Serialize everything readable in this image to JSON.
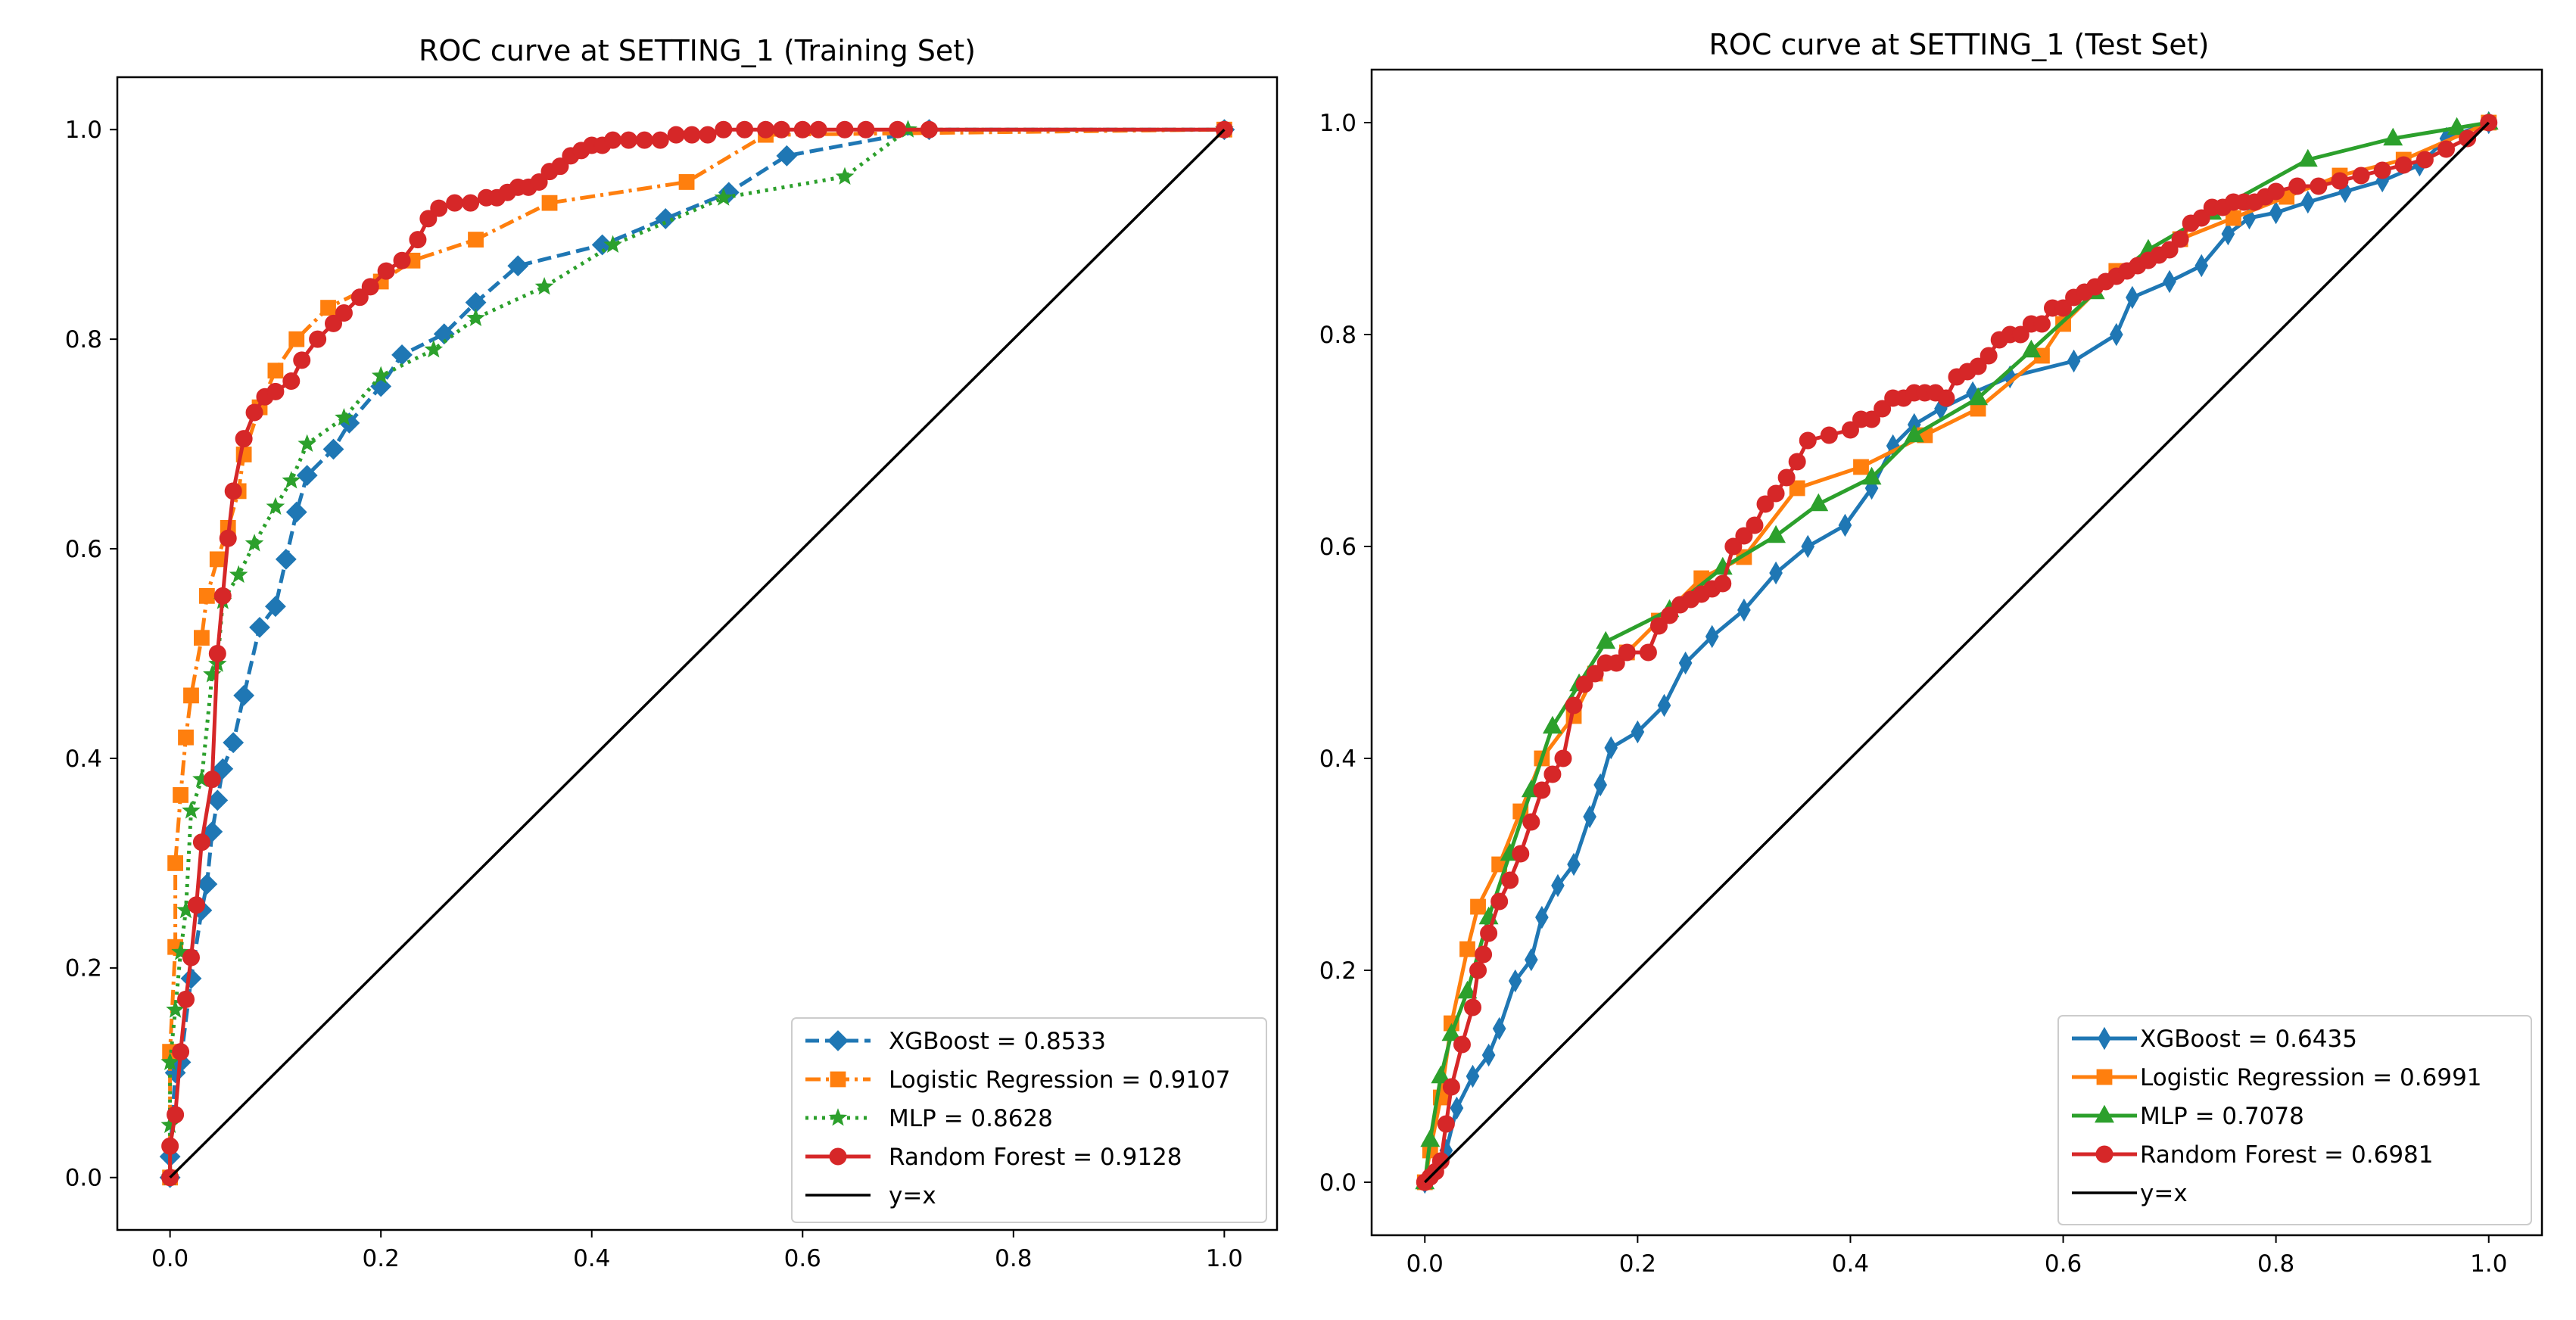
{
  "chart_data": [
    {
      "type": "line",
      "title": "ROC curve at SETTING_1 (Training Set)",
      "xlabel": "",
      "ylabel": "",
      "xlim": [
        -0.05,
        1.05
      ],
      "ylim": [
        -0.05,
        1.05
      ],
      "xticks": [
        "0.0",
        "0.2",
        "0.4",
        "0.6",
        "0.8",
        "1.0"
      ],
      "yticks": [
        "0.0",
        "0.2",
        "0.4",
        "0.6",
        "0.8",
        "1.0"
      ],
      "legend": "lower-right",
      "series": [
        {
          "name": "XGBoost = 0.8533",
          "color": "#1f77b4",
          "marker": "diamond",
          "linestyle": "dashed",
          "x": [
            0.0,
            0.0,
            0.005,
            0.01,
            0.02,
            0.03,
            0.035,
            0.04,
            0.045,
            0.05,
            0.06,
            0.07,
            0.085,
            0.1,
            0.11,
            0.12,
            0.13,
            0.155,
            0.17,
            0.2,
            0.22,
            0.26,
            0.29,
            0.33,
            0.41,
            0.47,
            0.53,
            0.585,
            0.72,
            1.0
          ],
          "y": [
            0.0,
            0.02,
            0.1,
            0.11,
            0.19,
            0.255,
            0.28,
            0.33,
            0.36,
            0.39,
            0.415,
            0.46,
            0.525,
            0.545,
            0.59,
            0.635,
            0.67,
            0.695,
            0.72,
            0.755,
            0.785,
            0.805,
            0.835,
            0.87,
            0.89,
            0.915,
            0.94,
            0.975,
            1.0,
            1.0
          ]
        },
        {
          "name": "Logistic Regression = 0.9107",
          "color": "#ff7f0e",
          "marker": "square",
          "linestyle": "dashdot",
          "x": [
            0.0,
            0.0,
            0.005,
            0.005,
            0.01,
            0.015,
            0.02,
            0.03,
            0.035,
            0.045,
            0.055,
            0.065,
            0.07,
            0.085,
            0.1,
            0.12,
            0.15,
            0.2,
            0.23,
            0.29,
            0.36,
            0.49,
            0.565,
            1.0
          ],
          "y": [
            0.0,
            0.12,
            0.22,
            0.3,
            0.365,
            0.42,
            0.46,
            0.515,
            0.555,
            0.59,
            0.62,
            0.655,
            0.69,
            0.735,
            0.77,
            0.8,
            0.83,
            0.855,
            0.875,
            0.895,
            0.93,
            0.95,
            0.995,
            1.0
          ]
        },
        {
          "name": "MLP = 0.8628",
          "color": "#2ca02c",
          "marker": "star",
          "linestyle": "dotted",
          "x": [
            0.0,
            0.0,
            0.0,
            0.005,
            0.01,
            0.015,
            0.02,
            0.03,
            0.04,
            0.045,
            0.05,
            0.065,
            0.08,
            0.1,
            0.115,
            0.13,
            0.165,
            0.2,
            0.25,
            0.29,
            0.355,
            0.42,
            0.525,
            0.64,
            0.7,
            1.0
          ],
          "y": [
            0.0,
            0.05,
            0.11,
            0.16,
            0.215,
            0.255,
            0.35,
            0.38,
            0.48,
            0.49,
            0.55,
            0.575,
            0.605,
            0.64,
            0.665,
            0.7,
            0.725,
            0.765,
            0.79,
            0.82,
            0.85,
            0.89,
            0.935,
            0.955,
            1.0,
            1.0
          ]
        },
        {
          "name": "Random Forest = 0.9128",
          "color": "#d62728",
          "marker": "circle",
          "linestyle": "solid",
          "x": [
            0.0,
            0.0,
            0.005,
            0.01,
            0.015,
            0.02,
            0.025,
            0.03,
            0.04,
            0.045,
            0.05,
            0.055,
            0.06,
            0.07,
            0.08,
            0.09,
            0.1,
            0.115,
            0.125,
            0.14,
            0.155,
            0.165,
            0.18,
            0.19,
            0.205,
            0.22,
            0.235,
            0.245,
            0.255,
            0.27,
            0.285,
            0.3,
            0.31,
            0.32,
            0.33,
            0.34,
            0.35,
            0.36,
            0.37,
            0.38,
            0.39,
            0.4,
            0.41,
            0.42,
            0.435,
            0.45,
            0.465,
            0.48,
            0.495,
            0.51,
            0.525,
            0.545,
            0.565,
            0.58,
            0.6,
            0.615,
            0.64,
            0.66,
            0.69,
            0.72,
            1.0
          ],
          "y": [
            0.0,
            0.03,
            0.06,
            0.12,
            0.17,
            0.21,
            0.26,
            0.32,
            0.38,
            0.5,
            0.555,
            0.61,
            0.655,
            0.705,
            0.73,
            0.745,
            0.75,
            0.76,
            0.78,
            0.8,
            0.815,
            0.825,
            0.84,
            0.85,
            0.865,
            0.875,
            0.895,
            0.915,
            0.925,
            0.93,
            0.93,
            0.935,
            0.935,
            0.94,
            0.945,
            0.945,
            0.95,
            0.96,
            0.965,
            0.975,
            0.98,
            0.985,
            0.985,
            0.99,
            0.99,
            0.99,
            0.99,
            0.995,
            0.995,
            0.995,
            1.0,
            1.0,
            1.0,
            1.0,
            1.0,
            1.0,
            1.0,
            1.0,
            1.0,
            1.0,
            1.0
          ]
        },
        {
          "name": "y=x",
          "color": "#000000",
          "marker": "none",
          "linestyle": "solid",
          "x": [
            0.0,
            1.0
          ],
          "y": [
            0.0,
            1.0
          ]
        }
      ]
    },
    {
      "type": "line",
      "title": "ROC curve at SETTING_1 (Test Set)",
      "xlabel": "",
      "ylabel": "",
      "xlim": [
        -0.05,
        1.05
      ],
      "ylim": [
        -0.05,
        1.05
      ],
      "xticks": [
        "0.0",
        "0.2",
        "0.4",
        "0.6",
        "0.8",
        "1.0"
      ],
      "yticks": [
        "0.0",
        "0.2",
        "0.4",
        "0.6",
        "0.8",
        "1.0"
      ],
      "legend": "lower-right",
      "series": [
        {
          "name": "XGBoost = 0.6435",
          "color": "#1f77b4",
          "marker": "thin-diamond",
          "linestyle": "solid",
          "x": [
            0.0,
            0.01,
            0.02,
            0.03,
            0.045,
            0.06,
            0.07,
            0.085,
            0.1,
            0.11,
            0.125,
            0.14,
            0.155,
            0.165,
            0.175,
            0.2,
            0.225,
            0.245,
            0.27,
            0.3,
            0.33,
            0.36,
            0.395,
            0.42,
            0.44,
            0.46,
            0.485,
            0.515,
            0.55,
            0.61,
            0.65,
            0.665,
            0.7,
            0.73,
            0.755,
            0.775,
            0.8,
            0.83,
            0.865,
            0.9,
            0.935,
            0.96,
            1.0
          ],
          "y": [
            0.0,
            0.01,
            0.03,
            0.07,
            0.1,
            0.12,
            0.145,
            0.19,
            0.21,
            0.25,
            0.28,
            0.3,
            0.345,
            0.375,
            0.41,
            0.425,
            0.45,
            0.49,
            0.515,
            0.54,
            0.575,
            0.6,
            0.62,
            0.655,
            0.695,
            0.715,
            0.73,
            0.745,
            0.76,
            0.775,
            0.8,
            0.835,
            0.85,
            0.865,
            0.895,
            0.91,
            0.915,
            0.925,
            0.935,
            0.945,
            0.96,
            0.985,
            1.0
          ]
        },
        {
          "name": "Logistic Regression = 0.6991",
          "color": "#ff7f0e",
          "marker": "square",
          "linestyle": "solid",
          "x": [
            0.0,
            0.005,
            0.015,
            0.025,
            0.04,
            0.05,
            0.07,
            0.09,
            0.11,
            0.14,
            0.16,
            0.19,
            0.22,
            0.26,
            0.3,
            0.35,
            0.41,
            0.47,
            0.52,
            0.58,
            0.6,
            0.65,
            0.71,
            0.76,
            0.81,
            0.86,
            0.92,
            1.0
          ],
          "y": [
            0.0,
            0.03,
            0.08,
            0.15,
            0.22,
            0.26,
            0.3,
            0.35,
            0.4,
            0.44,
            0.48,
            0.5,
            0.53,
            0.57,
            0.59,
            0.655,
            0.675,
            0.705,
            0.73,
            0.78,
            0.81,
            0.86,
            0.89,
            0.91,
            0.93,
            0.95,
            0.965,
            1.0
          ]
        },
        {
          "name": "MLP = 0.7078",
          "color": "#2ca02c",
          "marker": "triangle",
          "linestyle": "solid",
          "x": [
            0.0,
            0.005,
            0.015,
            0.025,
            0.04,
            0.06,
            0.08,
            0.1,
            0.12,
            0.145,
            0.17,
            0.23,
            0.28,
            0.33,
            0.37,
            0.42,
            0.46,
            0.52,
            0.57,
            0.63,
            0.68,
            0.74,
            0.83,
            0.91,
            0.97,
            1.0
          ],
          "y": [
            0.0,
            0.04,
            0.1,
            0.14,
            0.18,
            0.25,
            0.31,
            0.37,
            0.43,
            0.47,
            0.51,
            0.54,
            0.58,
            0.61,
            0.64,
            0.665,
            0.705,
            0.74,
            0.785,
            0.84,
            0.88,
            0.915,
            0.965,
            0.985,
            0.995,
            1.0
          ]
        },
        {
          "name": "Random Forest = 0.6981",
          "color": "#d62728",
          "marker": "circle",
          "linestyle": "solid",
          "x": [
            0.0,
            0.005,
            0.01,
            0.015,
            0.02,
            0.025,
            0.035,
            0.045,
            0.05,
            0.055,
            0.06,
            0.07,
            0.08,
            0.09,
            0.1,
            0.11,
            0.12,
            0.13,
            0.14,
            0.15,
            0.16,
            0.17,
            0.18,
            0.19,
            0.21,
            0.22,
            0.23,
            0.24,
            0.25,
            0.26,
            0.27,
            0.28,
            0.29,
            0.3,
            0.31,
            0.32,
            0.33,
            0.34,
            0.35,
            0.36,
            0.38,
            0.4,
            0.41,
            0.42,
            0.43,
            0.44,
            0.45,
            0.46,
            0.47,
            0.48,
            0.49,
            0.5,
            0.51,
            0.52,
            0.53,
            0.54,
            0.55,
            0.56,
            0.57,
            0.58,
            0.59,
            0.6,
            0.61,
            0.62,
            0.63,
            0.64,
            0.65,
            0.66,
            0.67,
            0.68,
            0.69,
            0.7,
            0.71,
            0.72,
            0.73,
            0.74,
            0.75,
            0.76,
            0.77,
            0.78,
            0.79,
            0.8,
            0.82,
            0.84,
            0.86,
            0.88,
            0.9,
            0.92,
            0.94,
            0.96,
            0.98,
            1.0
          ],
          "y": [
            0.0,
            0.005,
            0.01,
            0.02,
            0.055,
            0.09,
            0.13,
            0.165,
            0.2,
            0.215,
            0.235,
            0.265,
            0.285,
            0.31,
            0.34,
            0.37,
            0.385,
            0.4,
            0.45,
            0.47,
            0.48,
            0.49,
            0.49,
            0.5,
            0.5,
            0.525,
            0.535,
            0.545,
            0.55,
            0.555,
            0.56,
            0.565,
            0.6,
            0.61,
            0.62,
            0.64,
            0.65,
            0.665,
            0.68,
            0.7,
            0.705,
            0.71,
            0.72,
            0.72,
            0.73,
            0.74,
            0.74,
            0.745,
            0.745,
            0.745,
            0.74,
            0.76,
            0.765,
            0.77,
            0.78,
            0.795,
            0.8,
            0.8,
            0.81,
            0.81,
            0.825,
            0.825,
            0.835,
            0.84,
            0.845,
            0.85,
            0.855,
            0.86,
            0.865,
            0.87,
            0.875,
            0.88,
            0.89,
            0.905,
            0.91,
            0.92,
            0.92,
            0.925,
            0.925,
            0.925,
            0.93,
            0.935,
            0.94,
            0.94,
            0.945,
            0.95,
            0.955,
            0.96,
            0.965,
            0.975,
            0.985,
            1.0
          ]
        },
        {
          "name": "y=x",
          "color": "#000000",
          "marker": "none",
          "linestyle": "solid",
          "x": [
            0.0,
            1.0
          ],
          "y": [
            0.0,
            1.0
          ]
        }
      ]
    }
  ]
}
